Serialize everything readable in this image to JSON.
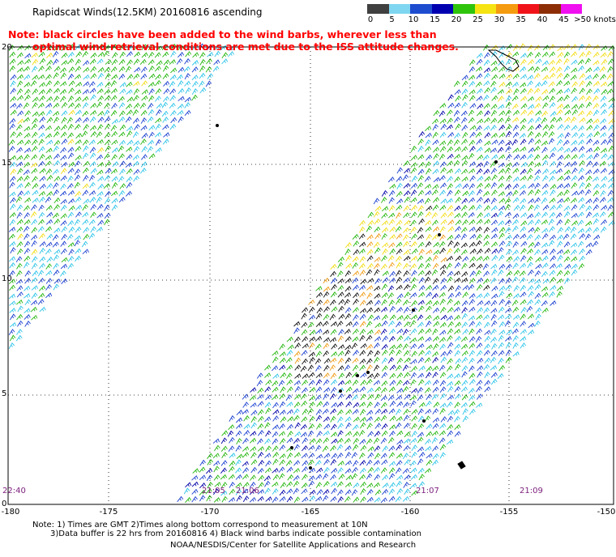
{
  "title": "Rapidscat Winds(12.5KM) 20160816 ascending",
  "note_red": [
    "Note: black circles have been added to the wind barbs, wherever less than",
    "optimal wind retrieval conditions are met due to the ISS attitude changes."
  ],
  "speed_scale": {
    "labels": [
      "0",
      "5",
      "10",
      "15",
      "20",
      "25",
      "30",
      "35",
      "40",
      "45",
      ">50 knots"
    ],
    "colors": [
      "#404040",
      "#7fd6f0",
      "#1e4ccf",
      "#0000b0",
      "#2fc40c",
      "#f5e312",
      "#f59b0f",
      "#f0141a",
      "#8c2d05",
      "#f010f0",
      "#5a0a96"
    ]
  },
  "lat_labels": [
    "20",
    "15",
    "10",
    "5",
    "0"
  ],
  "lon_labels": [
    "-180",
    "-175",
    "-170",
    "-165",
    "-160",
    "-155",
    "-150"
  ],
  "times": [
    "22:40",
    "21:05",
    "21:06",
    "21:07",
    "21:09"
  ],
  "footer": {
    "line1": "Note: 1) Times are GMT 2)Times along bottom correspond to measurement at 10N",
    "line2": "3)Data buffer is 22 hrs from 20160816 4) Black wind barbs indicate possible contamination",
    "line3": "NOAA/NESDIS/Center for Satellite Applications and Research"
  }
}
